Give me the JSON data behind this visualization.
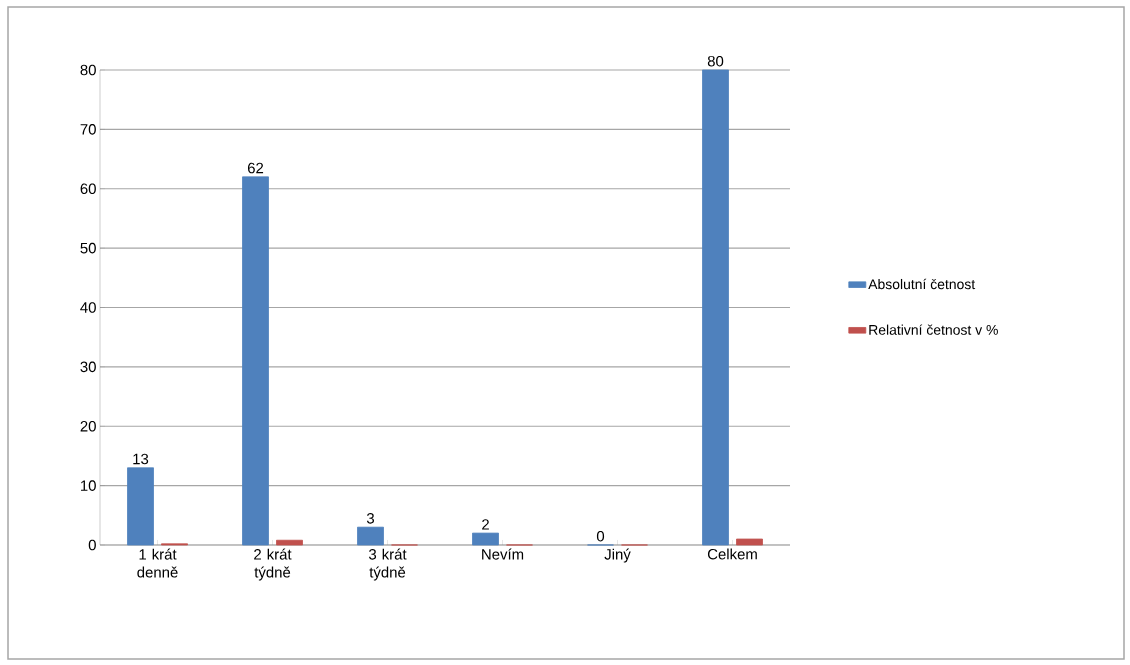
{
  "chart_data": {
    "type": "bar",
    "categories": [
      "1 krát denně",
      "2 krát týdně",
      "3 krát týdně",
      "Nevím",
      "Jiný",
      "Celkem"
    ],
    "series": [
      {
        "name": "Absolutní četnost",
        "color": "#4f81bd",
        "values": [
          13,
          62,
          3,
          2,
          0,
          80
        ],
        "value_labels": [
          "13",
          "62",
          "3",
          "2",
          "0",
          "80"
        ]
      },
      {
        "name": "Relativní četnost v %",
        "color": "#c0504d",
        "values": [
          0.2,
          0.8,
          0,
          0,
          0,
          1
        ]
      }
    ],
    "ylim": [
      0,
      80
    ],
    "yticks": [
      0,
      10,
      20,
      30,
      40,
      50,
      60,
      70,
      80
    ],
    "grid": "y",
    "legend": "right"
  }
}
